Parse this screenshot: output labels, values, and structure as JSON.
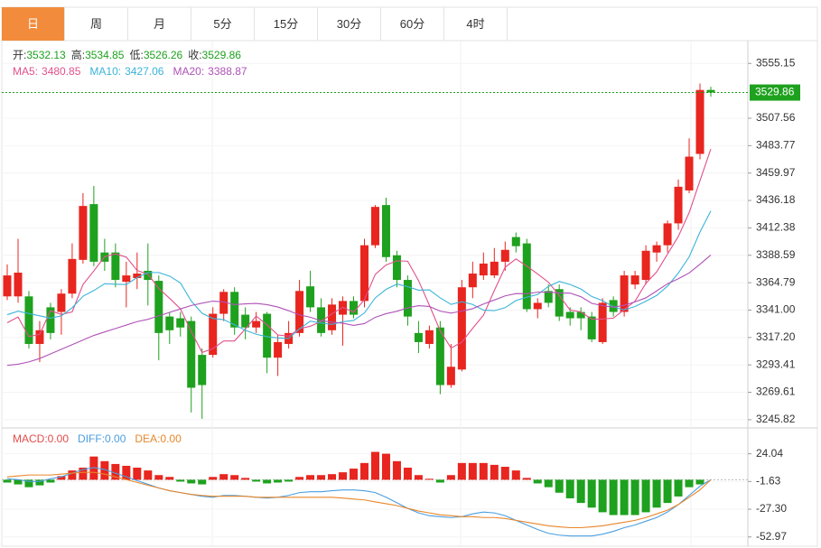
{
  "tabs": [
    "日",
    "周",
    "月",
    "5分",
    "15分",
    "30分",
    "60分",
    "4时"
  ],
  "chart_data": [
    {
      "type": "candlestick",
      "ohlc_labels": [
        "开:",
        "高:",
        "低:",
        "收:"
      ],
      "up_color": "#e8251f",
      "down_color": "#1ea11e",
      "open": [
        3352.9,
        3352.9,
        3352.9,
        3311.6,
        3343.4,
        3339.4,
        3355.3,
        3384.6,
        3433.0,
        3391.0,
        3391.0,
        3365.6,
        3368.8,
        3375.1,
        3366.4,
        3335.4,
        3333.9,
        3331.5,
        3302.1,
        3302.1,
        3337.8,
        3356.8,
        3337.0,
        3325.9,
        3337.8,
        3299.7,
        3311.6,
        3321.1,
        3361.6,
        3343.4,
        3323.5,
        3337.0,
        3348.9,
        3348.9,
        3397.3,
        3432.2,
        3388.6,
        3367.2,
        3321.1,
        3311.6,
        3325.9,
        3275.9,
        3289.4,
        3360.8,
        3371.1,
        3371.1,
        3383.0,
        3404.4,
        3398.9,
        3341.8,
        3357.6,
        3359.2,
        3339.4,
        3339.4,
        3335.4,
        3313.2,
        3349.7,
        3339.4,
        3363.2,
        3367.2,
        3391.0,
        3397.3,
        3416.3,
        3444.9,
        3476.6,
        3532.13
      ],
      "high": [
        3380.7,
        3402.9,
        3357.6,
        3331.5,
        3347.3,
        3359.2,
        3398.9,
        3442.5,
        3448.8,
        3402.9,
        3398.9,
        3383.0,
        3391.0,
        3398.9,
        3371.1,
        3339.4,
        3339.4,
        3335.4,
        3307.7,
        3343.4,
        3359.2,
        3360.8,
        3343.4,
        3339.4,
        3339.4,
        3319.6,
        3331.5,
        3367.2,
        3375.1,
        3351.3,
        3351.3,
        3352.9,
        3352.9,
        3402.9,
        3432.2,
        3438.6,
        3392.5,
        3371.1,
        3331.5,
        3327.5,
        3331.5,
        3311.6,
        3367.2,
        3383.0,
        3391.0,
        3394.9,
        3400.5,
        3408.4,
        3402.9,
        3351.3,
        3363.2,
        3363.2,
        3343.4,
        3343.4,
        3339.4,
        3351.3,
        3352.9,
        3375.1,
        3375.1,
        3397.3,
        3400.5,
        3418.7,
        3454.4,
        3490.1,
        3537.7,
        3534.85
      ],
      "low": [
        3349.7,
        3347.3,
        3307.7,
        3295.8,
        3315.6,
        3319.6,
        3351.3,
        3381.4,
        3379.1,
        3375.1,
        3360.8,
        3343.4,
        3359.2,
        3345.0,
        3297.4,
        3311.6,
        3318.0,
        3252.1,
        3246.6,
        3299.7,
        3331.5,
        3319.6,
        3315.6,
        3321.1,
        3286.2,
        3283.8,
        3307.7,
        3318.0,
        3339.4,
        3318.0,
        3319.6,
        3310.1,
        3333.9,
        3343.4,
        3394.9,
        3383.0,
        3360.8,
        3327.5,
        3303.7,
        3307.7,
        3268.0,
        3273.6,
        3287.8,
        3351.3,
        3367.2,
        3368.8,
        3375.1,
        3391.0,
        3339.4,
        3333.9,
        3343.4,
        3331.5,
        3327.5,
        3323.5,
        3313.2,
        3311.6,
        3335.4,
        3335.4,
        3359.2,
        3363.2,
        3383.0,
        3391.0,
        3410.8,
        3442.5,
        3471.9,
        3526.26
      ],
      "close": [
        3371.1,
        3373.5,
        3311.6,
        3323.5,
        3321.1,
        3355.3,
        3385.4,
        3431.4,
        3383.0,
        3383.0,
        3367.2,
        3371.1,
        3372.7,
        3367.2,
        3321.1,
        3323.5,
        3325.9,
        3273.6,
        3275.9,
        3337.8,
        3356.8,
        3325.9,
        3325.9,
        3331.5,
        3299.7,
        3313.2,
        3321.1,
        3357.6,
        3343.4,
        3321.1,
        3345.8,
        3348.9,
        3337.0,
        3397.3,
        3430.6,
        3387.0,
        3367.2,
        3335.4,
        3313.2,
        3323.5,
        3275.9,
        3291.8,
        3360.8,
        3372.7,
        3381.4,
        3383.0,
        3393.3,
        3396.5,
        3341.8,
        3347.3,
        3347.3,
        3335.4,
        3333.9,
        3333.9,
        3315.6,
        3347.3,
        3339.4,
        3371.1,
        3371.1,
        3392.5,
        3397.3,
        3416.3,
        3448.1,
        3474.2,
        3532.1,
        3529.86
      ],
      "ma": [
        {
          "name": "MA5:",
          "color": "#e2508c",
          "values": [
            3330,
            3335,
            3318,
            3320,
            3340.4,
            3337.2,
            3339.4,
            3363.2,
            3375,
            3387.4,
            3389.8,
            3387,
            3375.4,
            3372.2,
            3359.8,
            3351.2,
            3342.2,
            3322.4,
            3304.2,
            3307.6,
            3314.2,
            3314.2,
            3324.6,
            3335.8,
            3328.2,
            3319.4,
            3318.4,
            3324.8,
            3327,
            3331.2,
            3337.8,
            3343.4,
            3339.2,
            3350,
            3372,
            3380.2,
            3383.8,
            3383.4,
            3366.6,
            3345.2,
            3323,
            3308,
            3313.2,
            3325.2,
            3336.6,
            3358,
            3378.2,
            3385.4,
            3379.2,
            3372.4,
            3365.2,
            3353.6,
            3341,
            3339.4,
            3333.2,
            3333.2,
            3334,
            3341.4,
            3348.8,
            3364.2,
            3374.2,
            3389.6,
            3405,
            3425.6,
            3453.4,
            3480.85
          ]
        },
        {
          "name": "MA10:",
          "color": "#3bb4d8",
          "values": [
            3337,
            3340,
            3338,
            3336,
            3334,
            3336,
            3343,
            3353,
            3358,
            3363.9,
            3363.5,
            3363.2,
            3369.3,
            3373.6,
            3373.6,
            3370.5,
            3364.6,
            3348.9,
            3338.2,
            3333.7,
            3332.7,
            3328.2,
            3323.5,
            3320,
            3317.9,
            3316.8,
            3316.3,
            3324.7,
            3331.4,
            3329.7,
            3328.6,
            3330.9,
            3332,
            3338.5,
            3351.6,
            3359,
            3363.6,
            3361.3,
            3358.3,
            3358.6,
            3351.6,
            3345.9,
            3348.3,
            3345.9,
            3340.9,
            3340.5,
            3343.1,
            3349.3,
            3352.2,
            3354.5,
            3361.6,
            3365.9,
            3363.2,
            3359.3,
            3352.8,
            3349.2,
            3343.8,
            3341.2,
            3344.1,
            3348.7,
            3353.7,
            3361.8,
            3373.2,
            3387.2,
            3408.8,
            3427.06
          ]
        },
        {
          "name": "MA20:",
          "color": "#b052b8",
          "values": [
            3293,
            3294,
            3296,
            3299,
            3303,
            3307,
            3311,
            3315,
            3319,
            3322,
            3325,
            3328,
            3331,
            3333,
            3336,
            3339,
            3342,
            3345,
            3347,
            3348.8,
            3348.1,
            3345.7,
            3346.4,
            3346.8,
            3345.75,
            3343.65,
            3340.45,
            3336.8,
            3334.8,
            3331.7,
            3330.65,
            3329.55,
            3327.75,
            3329.25,
            3334.75,
            3337.9,
            3339.95,
            3343,
            3344.85,
            3344.15,
            3340.1,
            3338.4,
            3340.15,
            3342.2,
            3346.25,
            3349.75,
            3353.35,
            3355.3,
            3355.25,
            3356.55,
            3356.6,
            3355.9,
            3355.75,
            3352.6,
            3346.85,
            3344.85,
            3343.45,
            3345.25,
            3348.15,
            3351.6,
            3357.65,
            3363.85,
            3368.2,
            3373.25,
            3380.8,
            3388.87
          ]
        }
      ],
      "ylim": [
        3239.47,
        3573.39
      ],
      "yticks": [
        3555.15,
        3507.56,
        3483.77,
        3459.97,
        3436.18,
        3412.38,
        3388.59,
        3364.79,
        {
          "value": 3341,
          "label": "3341.00"
        },
        {
          "value": 3317.2,
          "label": "3317.20"
        },
        3293.41,
        3269.61,
        3245.82
      ],
      "last_price_line": true
    },
    {
      "type": "macd",
      "legend": [
        {
          "name": "MACD:",
          "color": "#e24b4b",
          "value": 0,
          "label": "0.00"
        },
        {
          "name": "DIFF:",
          "color": "#4a9ee0",
          "value": 0,
          "label": "0.00"
        },
        {
          "name": "DEA:",
          "color": "#e8862a",
          "value": 0,
          "label": "0.00"
        }
      ],
      "up_color": "#e8251f",
      "down_color": "#1ea11e",
      "histogram": [
        -2.6,
        -4.3,
        -6.9,
        -5.2,
        -2.6,
        3.4,
        8.6,
        11.2,
        21.5,
        17.2,
        14.6,
        12.9,
        11.2,
        8.6,
        4.3,
        2.6,
        -1.7,
        -3.4,
        -4.3,
        2.6,
        5.2,
        4.3,
        1.7,
        -1.7,
        -3.4,
        -2.6,
        -1.7,
        2.6,
        4.3,
        4.3,
        5.2,
        6.9,
        10.3,
        15.5,
        25.8,
        24.1,
        17.2,
        11.2,
        4.3,
        0.9,
        -2.6,
        4.3,
        15.5,
        15.5,
        15.5,
        13.8,
        12.0,
        8.6,
        1.7,
        -3.4,
        -6.9,
        -12.0,
        -17.2,
        -21.5,
        -25.8,
        -30.1,
        -32.7,
        -32.7,
        -32.7,
        -30.1,
        -25.8,
        -21.5,
        -15.5,
        -6.9,
        -4.3,
        0
      ],
      "series": [
        {
          "color": "#4a9ee0",
          "values": [
            0.9,
            0.1,
            -1.6,
            -1.6,
            0.9,
            2.7,
            6.1,
            9.5,
            11.2,
            9.5,
            6.1,
            2.7,
            -0.8,
            -4.2,
            -7.6,
            -10.2,
            -11.9,
            -13.6,
            -15.3,
            -16.2,
            -14.5,
            -14.5,
            -15.3,
            -16.2,
            -17.0,
            -16.2,
            -14.5,
            -11.9,
            -11.1,
            -11.1,
            -10.2,
            -9.4,
            -9.4,
            -10.2,
            -11.9,
            -16.2,
            -21.3,
            -26.5,
            -30.7,
            -33.3,
            -34.2,
            -35.0,
            -34.2,
            -31.6,
            -29.9,
            -30.7,
            -33.3,
            -37.6,
            -41.9,
            -46.1,
            -49.6,
            -51.3,
            -52.1,
            -52.1,
            -52.1,
            -50.4,
            -47.8,
            -44.4,
            -41.9,
            -38.4,
            -35.0,
            -29.9,
            -23.0,
            -14.5,
            -5.9,
            0
          ]
        },
        {
          "color": "#e8862a",
          "values": [
            2.7,
            3.5,
            4.4,
            4.4,
            4.4,
            5.2,
            6.1,
            6.9,
            6.9,
            5.2,
            2.7,
            0.1,
            -2.5,
            -5.1,
            -7.6,
            -10.2,
            -11.9,
            -13.6,
            -14.5,
            -15.3,
            -15.3,
            -15.3,
            -15.3,
            -16.2,
            -16.2,
            -16.2,
            -16.2,
            -16.2,
            -16.2,
            -16.2,
            -16.2,
            -17.0,
            -17.9,
            -18.7,
            -20.5,
            -22.2,
            -23.9,
            -26.5,
            -29.0,
            -30.7,
            -32.4,
            -33.3,
            -34.2,
            -34.2,
            -35.0,
            -35.0,
            -35.9,
            -37.6,
            -39.3,
            -41.0,
            -42.7,
            -43.6,
            -44.4,
            -44.4,
            -43.6,
            -42.7,
            -41.0,
            -39.3,
            -37.6,
            -35.0,
            -31.6,
            -28.2,
            -23.0,
            -16.2,
            -9.4,
            0
          ]
        }
      ],
      "ylim": [
        -61.53,
        47.14
      ],
      "yticks": [
        24.04,
        -1.63,
        {
          "value": -27.3,
          "label": "-27.30"
        },
        -52.97
      ]
    }
  ]
}
